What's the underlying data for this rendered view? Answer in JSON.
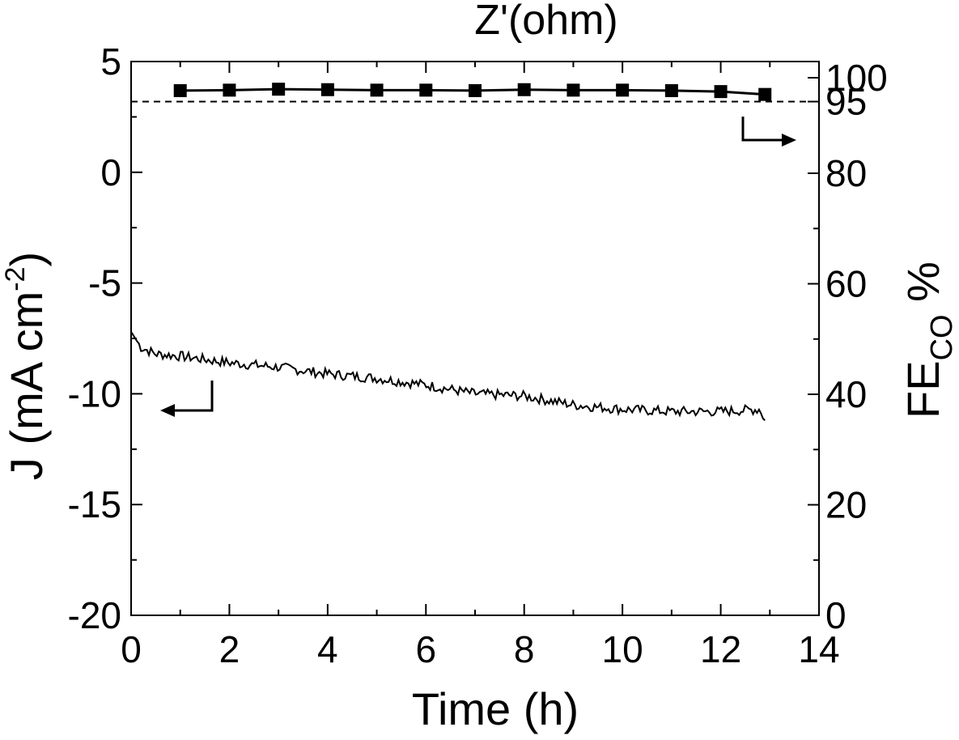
{
  "chart_data": {
    "type": "line",
    "top_title": "Z'(ohm)",
    "xlabel": "Time (h)",
    "ylabel_left": "J (mA cm-2)",
    "ylabel_left_parts": {
      "main": "J (mA cm",
      "sup": "-2",
      "close": ")"
    },
    "ylabel_right": "FE_CO %",
    "ylabel_right_parts": {
      "main": "FE",
      "sub": "CO",
      "tail": " %"
    },
    "xlim": [
      0,
      14
    ],
    "ylim_left": [
      -20,
      5
    ],
    "ylim_right_ticks": [
      {
        "value": 100,
        "label": "100"
      },
      {
        "value": 95,
        "label": "95"
      },
      {
        "value": 80,
        "label": "80"
      },
      {
        "value": 60,
        "label": "60"
      },
      {
        "value": 40,
        "label": "40"
      },
      {
        "value": 20,
        "label": "20"
      },
      {
        "value": 0,
        "label": "0"
      }
    ],
    "x_ticks": [
      "0",
      "2",
      "4",
      "6",
      "8",
      "10",
      "12",
      "14"
    ],
    "y_left_ticks": [
      "5",
      "0",
      "-5",
      "-10",
      "-15",
      "-20"
    ],
    "reference_line": {
      "axis": "right",
      "value": 95,
      "style": "dashed"
    },
    "grid": false,
    "series": [
      {
        "axis": "right",
        "marker": "square",
        "x": [
          1,
          2,
          3,
          4,
          5,
          6,
          7,
          8,
          9,
          10,
          11,
          12,
          12.9
        ],
        "y": [
          97.3,
          97.4,
          97.6,
          97.5,
          97.4,
          97.4,
          97.3,
          97.5,
          97.4,
          97.4,
          97.3,
          97.1,
          96.5
        ]
      },
      {
        "axis": "left",
        "style": "noisy-line",
        "x": [
          0,
          0.2,
          0.5,
          1,
          2,
          3,
          4,
          5,
          6,
          7,
          8,
          9,
          10,
          11,
          12,
          12.8,
          12.9
        ],
        "y": [
          -7.2,
          -7.9,
          -8.2,
          -8.3,
          -8.6,
          -8.8,
          -9.1,
          -9.3,
          -9.6,
          -10.0,
          -10.1,
          -10.5,
          -10.7,
          -10.8,
          -10.8,
          -10.7,
          -11.2
        ]
      }
    ]
  }
}
